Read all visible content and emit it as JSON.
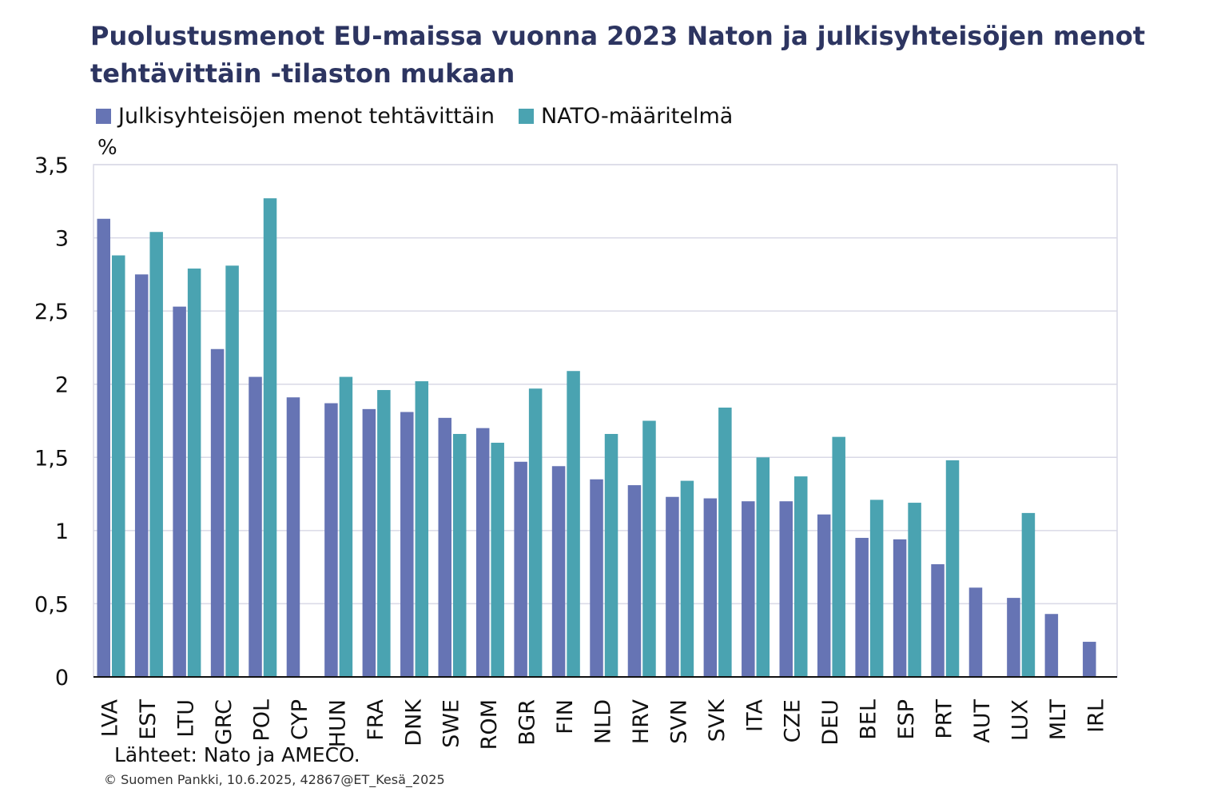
{
  "title": "Puolustusmenot EU-maissa vuonna 2023 Naton ja julkisyhteisöjen menot tehtävittäin -tilaston mukaan",
  "unit_label": "%",
  "source": "Lähteet: Nato ja AMECO.",
  "copyright": "© Suomen Pankki, 10.6.2025, 42867@ET_Kesä_2025",
  "colors": {
    "series1": "#6674b4",
    "series2": "#4aa3b1",
    "grid": "#d9d9e6",
    "axis": "#111111"
  },
  "chart_data": {
    "type": "bar",
    "title": "Puolustusmenot EU-maissa vuonna 2023 Naton ja julkisyhteisöjen menot tehtävittäin -tilaston mukaan",
    "ylabel": "%",
    "xlabel": "",
    "ylim": [
      0,
      3.5
    ],
    "yticks": [
      "0",
      "0,5",
      "1",
      "1,5",
      "2",
      "2,5",
      "3",
      "3,5"
    ],
    "ytick_values": [
      0,
      0.5,
      1,
      1.5,
      2,
      2.5,
      3,
      3.5
    ],
    "grid": true,
    "legend_position": "top-left",
    "categories": [
      "LVA",
      "EST",
      "LTU",
      "GRC",
      "POL",
      "CYP",
      "HUN",
      "FRA",
      "DNK",
      "SWE",
      "ROM",
      "BGR",
      "FIN",
      "NLD",
      "HRV",
      "SVN",
      "SVK",
      "ITA",
      "CZE",
      "DEU",
      "BEL",
      "ESP",
      "PRT",
      "AUT",
      "LUX",
      "MLT",
      "IRL"
    ],
    "series": [
      {
        "name": "Julkisyhteisöjen menot tehtävittäin",
        "values": [
          3.13,
          2.75,
          2.53,
          2.24,
          2.05,
          1.91,
          1.87,
          1.83,
          1.81,
          1.77,
          1.7,
          1.47,
          1.44,
          1.35,
          1.31,
          1.23,
          1.22,
          1.2,
          1.2,
          1.11,
          0.95,
          0.94,
          0.77,
          0.61,
          0.54,
          0.43,
          0.24
        ]
      },
      {
        "name": "NATO-määritelmä",
        "values": [
          2.88,
          3.04,
          2.79,
          2.81,
          3.27,
          null,
          2.05,
          1.96,
          2.02,
          1.66,
          1.6,
          1.97,
          2.09,
          1.66,
          1.75,
          1.34,
          1.84,
          1.5,
          1.37,
          1.64,
          1.21,
          1.19,
          1.48,
          null,
          1.12,
          null,
          null
        ]
      }
    ]
  }
}
